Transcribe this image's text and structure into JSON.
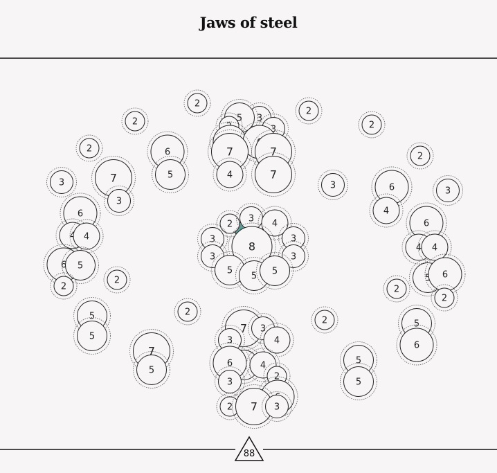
{
  "title": "Jaws of steel",
  "total": "88",
  "colors": {
    "background": "#f7f5f6",
    "node_stroke": "#222222",
    "halo_stroke": "#777777",
    "tile_teal": "#5e9e99",
    "tile_green": "#4f7f5a"
  },
  "nodes": [
    {
      "v": 2
    },
    {
      "v": 2
    },
    {
      "v": 2
    },
    {
      "v": 2
    },
    {
      "v": 2
    },
    {
      "v": 2
    },
    {
      "v": 3
    },
    {
      "v": 7
    },
    {
      "v": 3
    },
    {
      "v": 6
    },
    {
      "v": 5
    },
    {
      "v": 3
    },
    {
      "v": 5
    },
    {
      "v": 2
    },
    {
      "v": 3
    },
    {
      "v": 6
    },
    {
      "v": 6
    },
    {
      "v": 7
    },
    {
      "v": 7
    },
    {
      "v": 4
    },
    {
      "v": 7
    },
    {
      "v": 3
    },
    {
      "v": 6
    },
    {
      "v": 4
    },
    {
      "v": 3
    },
    {
      "v": 6
    },
    {
      "v": 4
    },
    {
      "v": 4
    },
    {
      "v": 6
    },
    {
      "v": 5
    },
    {
      "v": 2
    },
    {
      "v": 2
    },
    {
      "v": 2
    },
    {
      "v": 3
    },
    {
      "v": 4
    },
    {
      "v": 3
    },
    {
      "v": 8
    },
    {
      "v": 3
    },
    {
      "v": 3
    },
    {
      "v": 3
    },
    {
      "v": 5
    },
    {
      "v": 5
    },
    {
      "v": 5
    },
    {
      "v": 6
    },
    {
      "v": 4
    },
    {
      "v": 4
    },
    {
      "v": 5
    },
    {
      "v": 6
    },
    {
      "v": 2
    },
    {
      "v": 2
    },
    {
      "v": 5
    },
    {
      "v": 5
    },
    {
      "v": 2
    },
    {
      "v": 7
    },
    {
      "v": 3
    },
    {
      "v": 2
    },
    {
      "v": 7
    },
    {
      "v": 5
    },
    {
      "v": 3
    },
    {
      "v": 4
    },
    {
      "v": 5
    },
    {
      "v": 6
    },
    {
      "v": 5
    },
    {
      "v": 6
    },
    {
      "v": 3
    },
    {
      "v": 4
    },
    {
      "v": 2
    },
    {
      "v": 6
    },
    {
      "v": 2
    },
    {
      "v": 7
    },
    {
      "v": 3
    },
    {
      "v": 5
    },
    {
      "v": 5
    }
  ]
}
